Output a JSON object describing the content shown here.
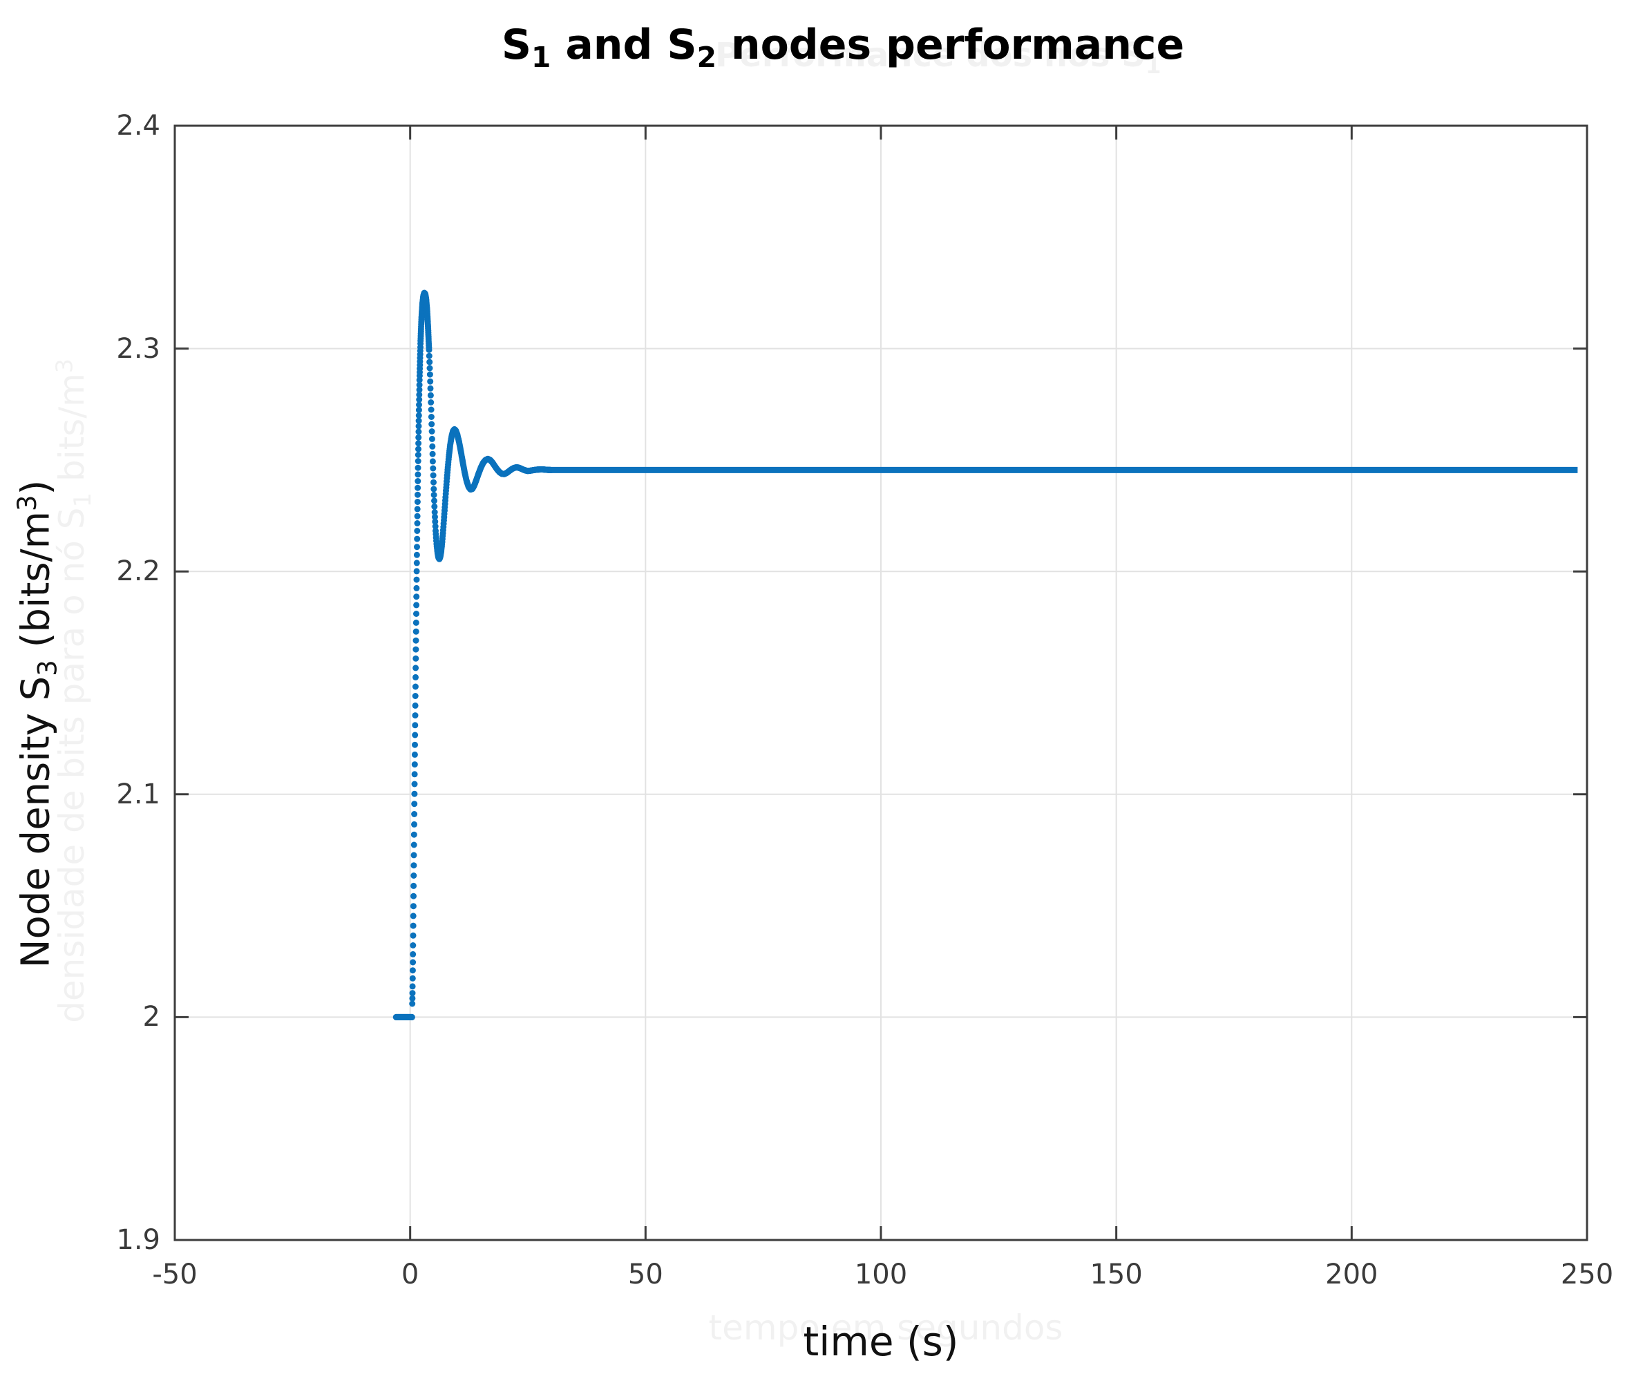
{
  "figure": {
    "title": {
      "s1": "S",
      "s1_sub": "1",
      "mid": " and S",
      "s2_sub": "2",
      "rest": " nodes performance"
    },
    "ylabel": {
      "main": "Node density S",
      "sub": "3",
      "unit_open": " (bits/m",
      "sup": "3",
      "close": ")"
    },
    "xlabel": "time (s)",
    "watermarks": {
      "title_main": "Performance dos nós S",
      "title_sub": "1",
      "ylabel_main": "densidade de bits para o nó S",
      "ylabel_sub": "1",
      "ylabel_unit": " bits/m",
      "ylabel_sup": "3",
      "xlabel": "tempo em segundos"
    }
  },
  "chart_data": {
    "type": "line",
    "title": "S1 and S2 nodes performance",
    "xlabel": "time (s)",
    "ylabel": "Node density S3 (bits/m^3)",
    "xlim": [
      -50,
      250
    ],
    "ylim": [
      1.9,
      2.4
    ],
    "xticks": {
      "values": [
        -50,
        0,
        50,
        100,
        150,
        200,
        250
      ],
      "labels": [
        "-50",
        "0",
        "50",
        "100",
        "150",
        "200",
        "250"
      ]
    },
    "yticks": {
      "values": [
        1.9,
        2.0,
        2.1,
        2.2,
        2.3,
        2.4
      ],
      "labels": [
        "1.9",
        "2",
        "2.1",
        "2.2",
        "2.3",
        "2.4"
      ]
    },
    "grid": true,
    "legend": null,
    "colors": {
      "line": "#0b72bd",
      "grid": "#e2e2e2",
      "axis": "#3d3d3d",
      "tick_label": "#3a3a3a"
    },
    "series": [
      {
        "name": "node density S3",
        "marker_style": "dense dot markers (appear dotted on steep step rise, solid elsewhere)",
        "initial_value": 2.0,
        "step_time": 0.4,
        "overshoot_peak": [
          3.1,
          2.325
        ],
        "first_trough": [
          6.2,
          2.2055
        ],
        "second_peak": [
          9.4,
          2.2638
        ],
        "second_trough": [
          12.8,
          2.2368
        ],
        "third_peak": [
          16.5,
          2.2505
        ],
        "steady_state": 2.2455,
        "end_time": 248,
        "points": [
          [
            -3,
            2
          ],
          [
            0.4,
            2
          ],
          [
            0.5,
            2.012
          ],
          [
            0.6,
            2.03
          ],
          [
            0.7,
            2.052
          ],
          [
            0.8,
            2.075
          ],
          [
            0.9,
            2.098
          ],
          [
            1,
            2.12
          ],
          [
            1.1,
            2.142
          ],
          [
            1.2,
            2.163
          ],
          [
            1.3,
            2.183
          ],
          [
            1.4,
            2.202
          ],
          [
            1.5,
            2.22
          ],
          [
            1.6,
            2.236
          ],
          [
            1.7,
            2.251
          ],
          [
            1.8,
            2.264
          ],
          [
            1.9,
            2.276
          ],
          [
            2,
            2.287
          ],
          [
            2.2,
            2.303
          ],
          [
            2.4,
            2.3135
          ],
          [
            2.6,
            2.32
          ],
          [
            2.8,
            2.3235
          ],
          [
            3,
            2.325
          ],
          [
            3.2,
            2.3245
          ],
          [
            3.4,
            2.322
          ],
          [
            3.6,
            2.317
          ],
          [
            3.8,
            2.3095
          ],
          [
            4,
            2.3
          ],
          [
            4.2,
            2.289
          ],
          [
            4.4,
            2.2765
          ],
          [
            4.6,
            2.2635
          ],
          [
            4.8,
            2.25
          ],
          [
            5,
            2.2375
          ],
          [
            5.2,
            2.227
          ],
          [
            5.4,
            2.2185
          ],
          [
            5.6,
            2.2125
          ],
          [
            5.8,
            2.2085
          ],
          [
            6,
            2.2062
          ],
          [
            6.2,
            2.2055
          ],
          [
            6.4,
            2.2065
          ],
          [
            6.6,
            2.209
          ],
          [
            6.8,
            2.213
          ],
          [
            7,
            2.2182
          ],
          [
            7.3,
            2.227
          ],
          [
            7.6,
            2.236
          ],
          [
            7.9,
            2.2442
          ],
          [
            8.2,
            2.2512
          ],
          [
            8.5,
            2.2567
          ],
          [
            8.8,
            2.2606
          ],
          [
            9.1,
            2.263
          ],
          [
            9.4,
            2.2638
          ],
          [
            9.7,
            2.2632
          ],
          [
            10,
            2.2615
          ],
          [
            10.4,
            2.258
          ],
          [
            10.8,
            2.2535
          ],
          [
            11.2,
            2.2487
          ],
          [
            11.6,
            2.2442
          ],
          [
            12,
            2.2405
          ],
          [
            12.4,
            2.238
          ],
          [
            12.8,
            2.2368
          ],
          [
            13.2,
            2.237
          ],
          [
            13.6,
            2.2385
          ],
          [
            14,
            2.2407
          ],
          [
            14.5,
            2.2437
          ],
          [
            15,
            2.2465
          ],
          [
            15.5,
            2.2487
          ],
          [
            16,
            2.25
          ],
          [
            16.5,
            2.2505
          ],
          [
            17,
            2.25
          ],
          [
            17.5,
            2.2488
          ],
          [
            18,
            2.2472
          ],
          [
            18.5,
            2.2457
          ],
          [
            19,
            2.2445
          ],
          [
            19.5,
            2.2438
          ],
          [
            20,
            2.2437
          ],
          [
            20.5,
            2.2442
          ],
          [
            21,
            2.245
          ],
          [
            21.5,
            2.2458
          ],
          [
            22,
            2.2464
          ],
          [
            22.5,
            2.2467
          ],
          [
            23,
            2.2466
          ],
          [
            23.5,
            2.2462
          ],
          [
            24,
            2.2457
          ],
          [
            24.5,
            2.2453
          ],
          [
            25,
            2.2451
          ],
          [
            25.5,
            2.2452
          ],
          [
            26,
            2.2454
          ],
          [
            27,
            2.2457
          ],
          [
            28,
            2.2458
          ],
          [
            29,
            2.2456
          ],
          [
            30,
            2.2455
          ],
          [
            248,
            2.2455
          ]
        ]
      }
    ]
  }
}
